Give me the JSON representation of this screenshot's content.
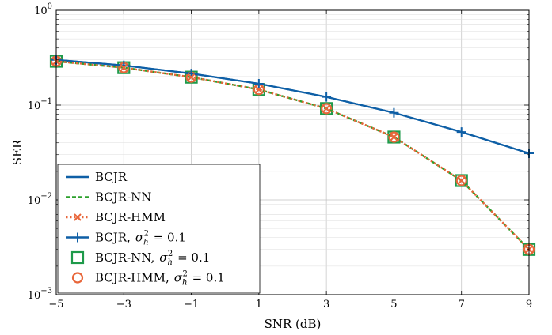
{
  "chart_data": {
    "type": "line",
    "xlabel": "SNR (dB)",
    "ylabel": "SER",
    "xlim": [
      -5,
      9
    ],
    "ylim": [
      0.001,
      1
    ],
    "yscale": "log",
    "grid": true,
    "legend_position": "bottom-left",
    "x": [
      -5,
      -3,
      -1,
      1,
      3,
      5,
      7,
      9
    ],
    "x_tick_labels": [
      "−5",
      "−3",
      "−1",
      "1",
      "3",
      "5",
      "7",
      "9"
    ],
    "y_ticks": [
      {
        "value": 0.001,
        "base": "10",
        "exp": "−3"
      },
      {
        "value": 0.01,
        "base": "10",
        "exp": "−2"
      },
      {
        "value": 0.1,
        "base": "10",
        "exp": "−1"
      },
      {
        "value": 1,
        "base": "10",
        "exp": "0"
      }
    ],
    "series": [
      {
        "name": "BCJR",
        "color": "#0e5fa6",
        "line": "solid",
        "marker": "none",
        "values": [
          0.3,
          0.262,
          0.215,
          0.168,
          0.122,
          0.083,
          0.052,
          0.031
        ]
      },
      {
        "name": "BCJR-NN",
        "color": "#2ca02c",
        "line": "dashed",
        "marker": "none",
        "values": [
          0.29,
          0.248,
          0.197,
          0.146,
          0.092,
          0.046,
          0.016,
          0.003
        ]
      },
      {
        "name": "BCJR-HMM",
        "color": "#e8663a",
        "line": "dotted",
        "marker": "x",
        "values": [
          0.29,
          0.248,
          0.197,
          0.146,
          0.092,
          0.046,
          0.016,
          0.003
        ]
      },
      {
        "name": "BCJR, σ_h^2 = 0.1",
        "color": "#0e5fa6",
        "line": "solid",
        "marker": "plus",
        "values": [
          0.3,
          0.262,
          0.215,
          0.168,
          0.122,
          0.083,
          0.052,
          0.031
        ]
      },
      {
        "name": "BCJR-NN, σ_h^2 = 0.1",
        "color": "#1e9a4a",
        "line": "none",
        "marker": "square",
        "values": [
          0.29,
          0.248,
          0.197,
          0.146,
          0.092,
          0.046,
          0.016,
          0.003
        ]
      },
      {
        "name": "BCJR-HMM, σ_h^2 = 0.1",
        "color": "#e8663a",
        "line": "none",
        "marker": "circle",
        "values": [
          0.29,
          0.248,
          0.197,
          0.146,
          0.092,
          0.046,
          0.016,
          0.003
        ]
      }
    ],
    "legend": [
      {
        "label": "BCJR",
        "sigma": false
      },
      {
        "label": "BCJR-NN",
        "sigma": false
      },
      {
        "label": "BCJR-HMM",
        "sigma": false
      },
      {
        "label": "BCJR,",
        "sigma": true
      },
      {
        "label": "BCJR-NN,",
        "sigma": true
      },
      {
        "label": "BCJR-HMM,",
        "sigma": true
      }
    ],
    "sigma_label": {
      "symbol": "σ",
      "sub": "h",
      "sup": "2",
      "rhs": " = 0.1"
    }
  }
}
